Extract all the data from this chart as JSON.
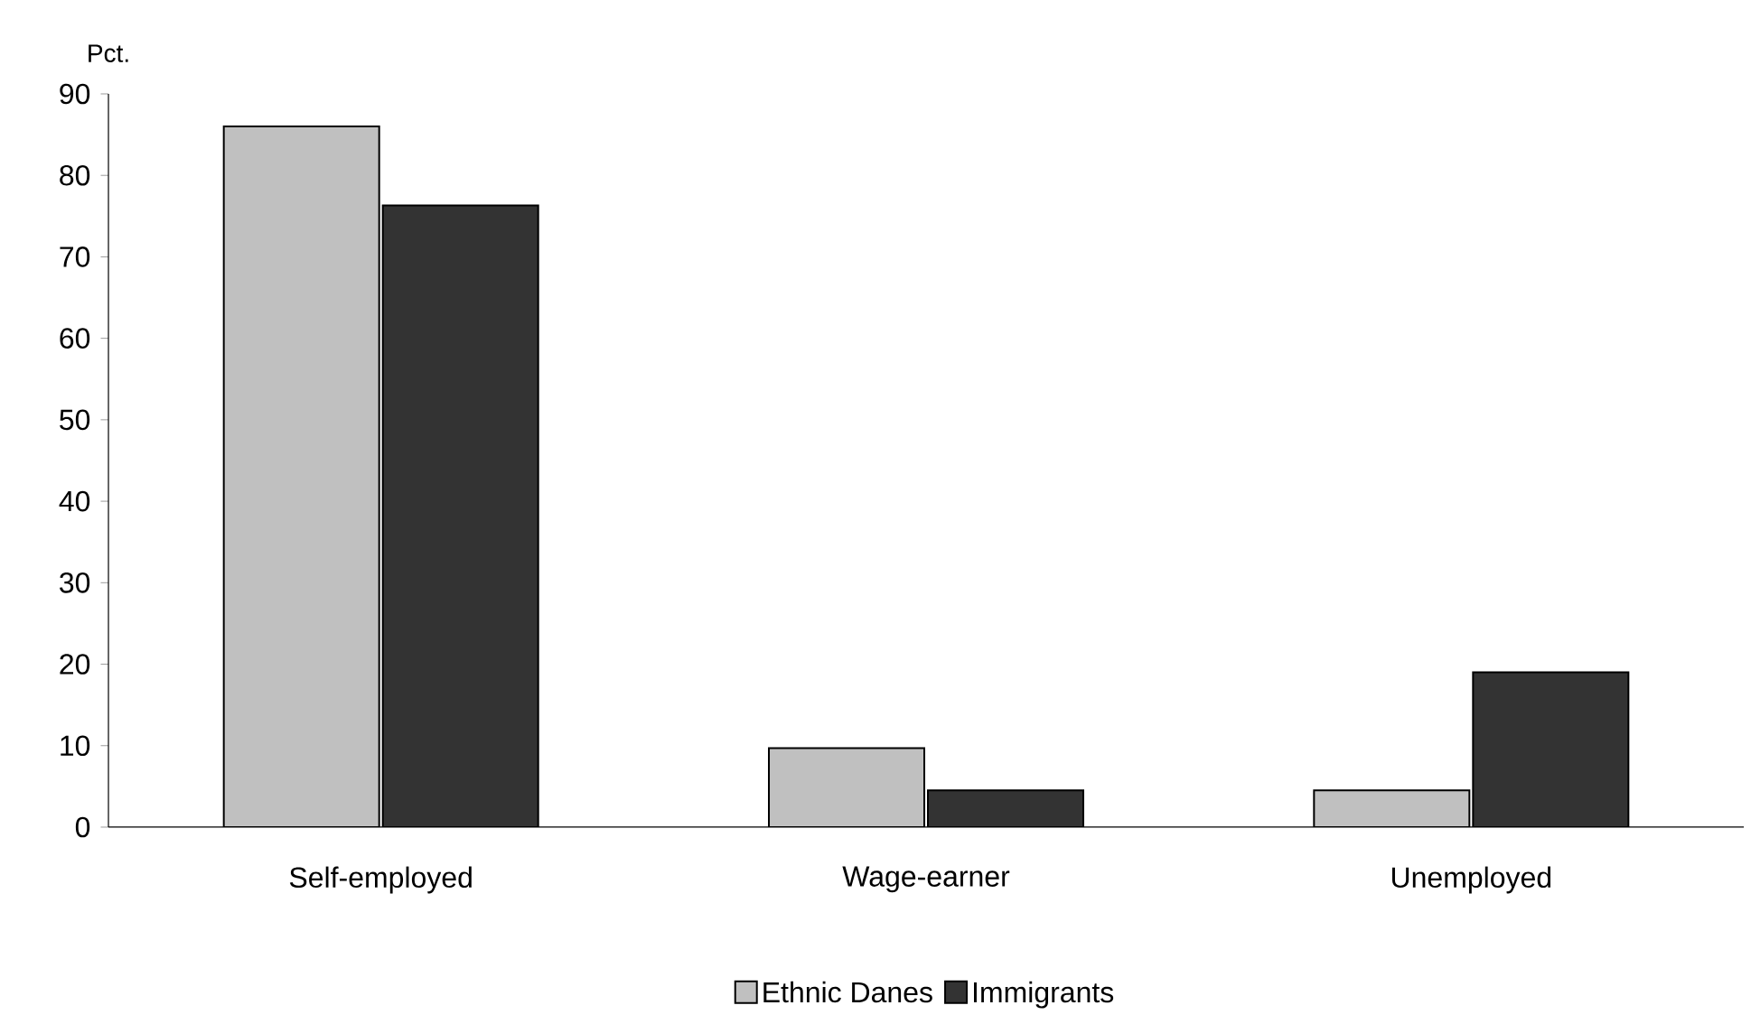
{
  "chart_data": {
    "type": "bar",
    "ylabel": "Pct.",
    "categories": [
      "Self-employed",
      "Wage-earner",
      "Unemployed"
    ],
    "series": [
      {
        "name": "Ethnic Danes",
        "color": "#c0c0c0",
        "values": [
          86,
          9.7,
          4.5
        ]
      },
      {
        "name": "Immigrants",
        "color": "#333333",
        "values": [
          76.3,
          4.5,
          19
        ]
      }
    ],
    "ylim": [
      0,
      90
    ],
    "yticks": [
      0,
      10,
      20,
      30,
      40,
      50,
      60,
      70,
      80,
      90
    ],
    "grid": false,
    "legend": "bottom"
  }
}
